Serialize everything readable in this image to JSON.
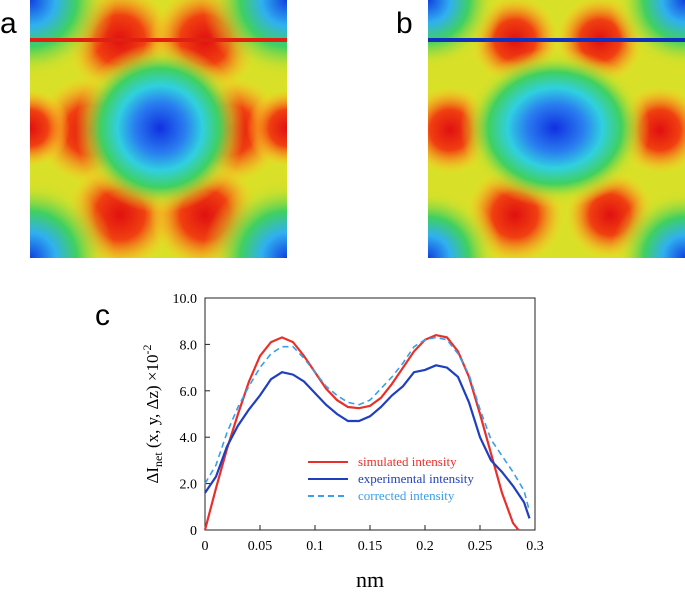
{
  "panel_labels": [
    "a",
    "b",
    "c"
  ],
  "chart_data": {
    "type": "line",
    "xlabel": "nm",
    "ylabel": {
      "main": "ΔI",
      "sub": "net",
      "rest": " (x, y, Δz) ×10",
      "sup": "-2"
    },
    "xlim": [
      0,
      0.3
    ],
    "xticks": [
      0,
      0.05,
      0.1,
      0.15,
      0.2,
      0.25,
      0.3
    ],
    "ylim": [
      0,
      10
    ],
    "yticks": [
      0,
      {
        "value": 2,
        "label": "2.0"
      },
      {
        "value": 4,
        "label": "4.0"
      },
      {
        "value": 6,
        "label": "6.0"
      },
      {
        "value": 8,
        "label": "8.0"
      },
      {
        "value": 10,
        "label": "10.0"
      }
    ],
    "legend": "lower right",
    "series": [
      {
        "name": "simulated intensity",
        "color": "#e8302a",
        "linestyle": "solid",
        "x": [
          0,
          0.01,
          0.02,
          0.03,
          0.04,
          0.05,
          0.06,
          0.07,
          0.08,
          0.09,
          0.1,
          0.11,
          0.12,
          0.13,
          0.14,
          0.15,
          0.16,
          0.17,
          0.18,
          0.19,
          0.2,
          0.21,
          0.22,
          0.23,
          0.24,
          0.25,
          0.26,
          0.27,
          0.28,
          0.285
        ],
        "values": [
          0,
          1.8,
          3.5,
          5.0,
          6.4,
          7.5,
          8.1,
          8.3,
          8.1,
          7.5,
          6.8,
          6.1,
          5.6,
          5.3,
          5.25,
          5.35,
          5.7,
          6.3,
          7.0,
          7.7,
          8.2,
          8.4,
          8.3,
          7.7,
          6.6,
          5.0,
          3.3,
          1.6,
          0.3,
          0
        ]
      },
      {
        "name": "experimental intensity",
        "color": "#1f3fbf",
        "linestyle": "solid",
        "x": [
          0,
          0.01,
          0.02,
          0.03,
          0.04,
          0.05,
          0.06,
          0.07,
          0.08,
          0.09,
          0.1,
          0.11,
          0.12,
          0.13,
          0.14,
          0.15,
          0.16,
          0.17,
          0.18,
          0.19,
          0.2,
          0.21,
          0.22,
          0.23,
          0.24,
          0.25,
          0.26,
          0.27,
          0.28,
          0.29,
          0.295
        ],
        "values": [
          1.6,
          2.3,
          3.6,
          4.5,
          5.2,
          5.8,
          6.5,
          6.8,
          6.7,
          6.4,
          5.9,
          5.4,
          5.0,
          4.7,
          4.7,
          4.9,
          5.3,
          5.8,
          6.2,
          6.8,
          6.9,
          7.1,
          7.0,
          6.6,
          5.5,
          4.0,
          3.0,
          2.5,
          1.9,
          1.2,
          0.5
        ]
      },
      {
        "name": "corrected intensity",
        "color": "#3a9ee8",
        "linestyle": "dashed",
        "x": [
          0,
          0.01,
          0.02,
          0.03,
          0.04,
          0.05,
          0.06,
          0.07,
          0.08,
          0.09,
          0.1,
          0.11,
          0.12,
          0.13,
          0.14,
          0.15,
          0.16,
          0.17,
          0.18,
          0.19,
          0.2,
          0.21,
          0.22,
          0.23,
          0.24,
          0.25,
          0.26,
          0.27,
          0.28,
          0.29,
          0.295
        ],
        "values": [
          2.0,
          2.8,
          4.2,
          5.3,
          6.2,
          7.0,
          7.6,
          7.9,
          7.9,
          7.4,
          6.8,
          6.2,
          5.8,
          5.5,
          5.4,
          5.6,
          6.1,
          6.6,
          7.2,
          7.9,
          8.2,
          8.3,
          8.2,
          7.6,
          6.7,
          5.2,
          3.9,
          3.2,
          2.5,
          1.7,
          0.8
        ]
      }
    ]
  }
}
